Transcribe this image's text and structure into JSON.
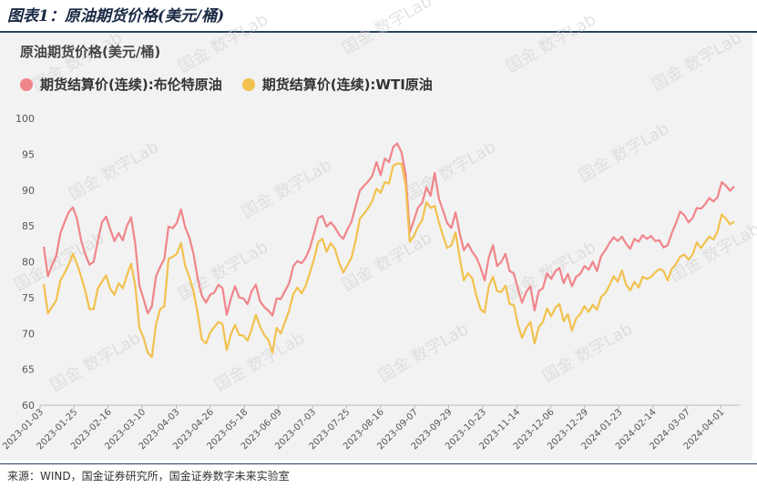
{
  "figure_title": "图表1：原油期货价格(美元/桶)",
  "source": "来源：WIND，国金证券研究所，国金证券数字未来实验室",
  "watermark": "国金 数字Lab",
  "colors": {
    "brent": "#f0858a",
    "wti": "#f2c14e",
    "rule": "#2b3f5c",
    "panel": "#f2f2f2"
  },
  "chart_data": {
    "type": "line",
    "title": "原油期货价格(美元/桶)",
    "ylim": [
      60,
      100
    ],
    "yticks": [
      60,
      65,
      70,
      75,
      80,
      85,
      90,
      95,
      100
    ],
    "xlabels": [
      "2023-01-03",
      "2023-01-25",
      "2023-02-16",
      "2023-03-10",
      "2023-04-03",
      "2023-04-26",
      "2023-05-18",
      "2023-06-09",
      "2023-07-03",
      "2023-07-25",
      "2023-08-16",
      "2023-09-07",
      "2023-09-29",
      "2023-10-23",
      "2023-11-14",
      "2023-12-06",
      "2023-12-29",
      "2024-01-23",
      "2024-02-14",
      "2024-03-07",
      "2024-04-01"
    ],
    "grid": false,
    "legend_position": "top-left",
    "series": [
      {
        "name": "期货结算价(连续):布伦特原油",
        "color": "#f0858a",
        "values": [
          82.1,
          78.0,
          79.5,
          80.8,
          84.0,
          85.5,
          86.9,
          87.6,
          86.0,
          83.0,
          81.0,
          79.6,
          80.0,
          82.9,
          85.5,
          86.3,
          84.5,
          82.9,
          84.0,
          83.0,
          85.0,
          86.2,
          82.5,
          76.7,
          74.8,
          72.8,
          73.8,
          78.0,
          79.3,
          80.4,
          84.9,
          84.7,
          85.4,
          87.3,
          84.8,
          83.4,
          81.1,
          77.7,
          75.3,
          74.3,
          75.4,
          75.7,
          76.8,
          76.3,
          72.6,
          74.9,
          76.6,
          75.0,
          74.9,
          74.1,
          75.9,
          76.8,
          74.5,
          73.7,
          73.2,
          72.5,
          74.9,
          74.8,
          75.9,
          77.0,
          79.4,
          80.1,
          79.8,
          80.6,
          81.9,
          84.0,
          86.1,
          86.4,
          84.9,
          85.5,
          84.8,
          83.8,
          83.2,
          84.5,
          85.6,
          87.8,
          89.9,
          90.6,
          91.2,
          92.0,
          93.9,
          92.1,
          94.4,
          93.9,
          96.0,
          96.5,
          95.3,
          92.2,
          84.1,
          85.8,
          87.6,
          88.2,
          90.4,
          89.2,
          92.4,
          88.8,
          87.1,
          85.4,
          84.7,
          86.9,
          84.0,
          81.6,
          82.5,
          81.4,
          80.6,
          79.2,
          77.4,
          80.6,
          82.3,
          79.4,
          80.0,
          81.1,
          78.7,
          78.4,
          76.2,
          74.3,
          75.8,
          76.6,
          73.2,
          75.9,
          76.3,
          78.4,
          77.6,
          78.7,
          79.1,
          77.0,
          78.3,
          76.6,
          77.9,
          78.3,
          79.4,
          78.9,
          80.0,
          78.7,
          80.8,
          81.6,
          82.6,
          83.4,
          82.9,
          83.5,
          82.5,
          81.8,
          83.2,
          82.8,
          83.7,
          83.2,
          83.6,
          82.9,
          83.0,
          82.0,
          82.3,
          84.0,
          85.4,
          87.0,
          86.5,
          85.5,
          86.1,
          87.5,
          87.4,
          88.0,
          88.9,
          88.4,
          89.0,
          91.1,
          90.6,
          89.9,
          90.5
        ]
      },
      {
        "name": "期货结算价(连续):WTI原油",
        "color": "#f2c14e",
        "values": [
          76.9,
          72.8,
          73.7,
          74.6,
          77.4,
          78.4,
          79.6,
          81.1,
          79.7,
          77.9,
          75.9,
          73.4,
          73.4,
          76.3,
          77.2,
          78.1,
          76.2,
          75.4,
          77.0,
          76.3,
          78.1,
          79.7,
          76.7,
          70.8,
          69.4,
          67.3,
          66.7,
          71.3,
          73.4,
          73.8,
          80.4,
          80.7,
          81.1,
          82.6,
          79.4,
          77.9,
          75.9,
          72.8,
          69.2,
          68.6,
          70.1,
          70.9,
          71.6,
          71.3,
          67.7,
          69.9,
          71.2,
          69.8,
          69.7,
          69.0,
          70.6,
          72.6,
          71.0,
          69.8,
          69.1,
          67.3,
          70.8,
          70.0,
          71.6,
          73.2,
          75.5,
          76.4,
          75.6,
          76.7,
          78.5,
          80.4,
          82.8,
          83.2,
          81.4,
          82.6,
          81.8,
          79.9,
          78.5,
          79.5,
          80.6,
          83.0,
          86.0,
          86.7,
          87.5,
          88.5,
          90.2,
          89.6,
          91.1,
          90.9,
          93.4,
          93.7,
          93.7,
          90.8,
          82.8,
          83.6,
          84.9,
          85.8,
          88.3,
          87.5,
          87.8,
          85.5,
          83.6,
          81.9,
          82.3,
          84.1,
          80.6,
          77.4,
          78.4,
          77.7,
          75.3,
          73.4,
          72.9,
          76.6,
          77.9,
          75.9,
          75.8,
          76.7,
          74.1,
          74.0,
          71.2,
          69.4,
          70.8,
          71.6,
          68.6,
          70.9,
          71.6,
          73.5,
          72.4,
          73.6,
          74.1,
          71.7,
          72.7,
          70.4,
          72.1,
          72.7,
          73.8,
          73.0,
          74.0,
          73.3,
          75.1,
          75.6,
          76.7,
          78.0,
          77.2,
          78.8,
          76.8,
          76.0,
          77.2,
          76.4,
          77.9,
          77.6,
          77.9,
          78.5,
          79.0,
          78.7,
          77.4,
          79.0,
          79.7,
          80.7,
          81.0,
          80.3,
          81.0,
          82.7,
          81.9,
          82.7,
          83.5,
          83.1,
          84.2,
          86.6,
          86.0,
          85.2,
          85.6
        ]
      }
    ]
  }
}
